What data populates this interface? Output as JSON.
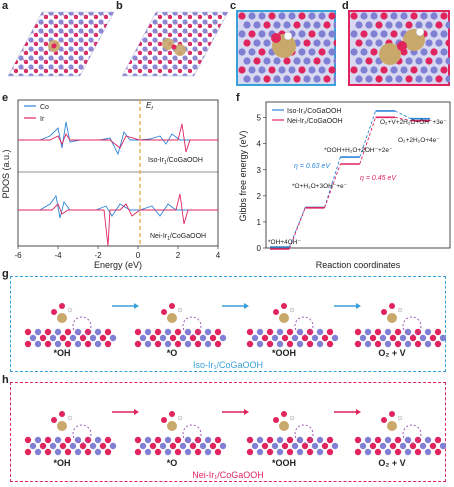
{
  "panels": {
    "a": "a",
    "b": "b",
    "c": "c",
    "d": "d",
    "e": "e",
    "f": "f",
    "g": "g",
    "h": "h"
  },
  "pdos": {
    "legend": [
      "Co",
      "Ir"
    ],
    "colors": {
      "co": "#2f86d8",
      "ir": "#e0245e",
      "fermi": "#e6a23c"
    },
    "fermi_label": "E",
    "fermi_sub": "f",
    "ylabel": "PDOS (a.u.)",
    "xlabel": "Energy (eV)",
    "xticks": [
      "-6",
      "-4",
      "-2",
      "0",
      "2",
      "4"
    ],
    "top_label": "Iso-Ir",
    "top_label_rest": "/CoGaOOH",
    "bottom_label": "Nei-Ir",
    "bottom_label_rest": "/CoGaOOH",
    "sub": "1"
  },
  "gibbs": {
    "ylabel": "Gibbs free energy (eV)",
    "xlabel": "Reaction coordinates",
    "yticks": [
      "0",
      "1",
      "2",
      "3",
      "4",
      "5"
    ],
    "legend": [
      "Iso-Ir₁/CoGaOOH",
      "Nei-Ir₁/CoGaOOH"
    ],
    "colors": {
      "iso": "#2f86d8",
      "nei": "#e0245e"
    },
    "step_labels": [
      "*OH+4OH⁻",
      "*O+H₂O+3OH⁻+e⁻",
      "*OOH+H₂O+2OH⁻+2e⁻",
      "O₂+V+2H₂O+OH⁻+3e⁻",
      "O₂+2H₂O+4e⁻"
    ],
    "eta_iso": "η = 0.63 eV",
    "eta_nei": "η = 0.45 eV"
  },
  "chart_data": {
    "type": "line",
    "categories": [
      "*OH+4OH-",
      "*O",
      "*OOH",
      "O2+V",
      "O2+2H2O+4e-"
    ],
    "series": [
      {
        "name": "Iso-Ir1/CoGaOOH",
        "values": [
          0.0,
          1.52,
          3.45,
          5.22,
          4.92
        ]
      },
      {
        "name": "Nei-Ir1/CoGaOOH",
        "values": [
          0.0,
          1.58,
          3.26,
          5.05,
          4.92
        ]
      }
    ],
    "ylim": [
      0,
      5.6
    ]
  },
  "mechanism": {
    "iso_frame": "Iso-Ir₁/CoGaOOH",
    "nei_frame": "Nei-Ir₁/CoGaOOH",
    "steps": [
      "*OH",
      "*O",
      "*OOH",
      "O₂ + V"
    ],
    "iso_color": "#3aa0d8",
    "nei_color": "#e0245e"
  }
}
